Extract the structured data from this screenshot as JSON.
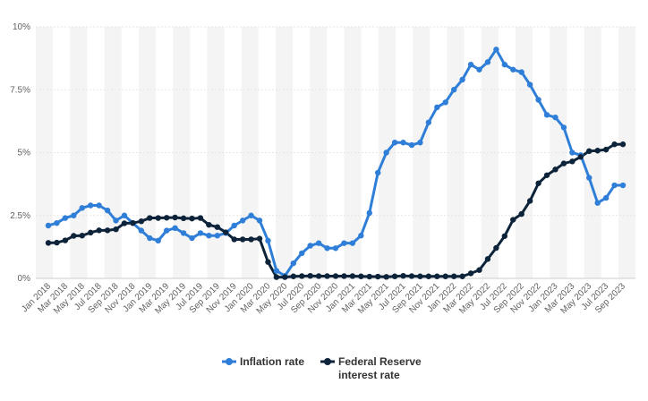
{
  "chart_data": {
    "type": "line",
    "x_tick_labels": [
      "Jan 2018",
      "Mar 2018",
      "May 2018",
      "Jul 2018",
      "Sep 2018",
      "Nov 2018",
      "Jan 2019",
      "Mar 2019",
      "May 2019",
      "Jul 2019",
      "Sep 2019",
      "Nov 2019",
      "Jan 2020",
      "Mar 2020",
      "May 2020",
      "Jul 2020",
      "Sep 2020",
      "Nov 2020",
      "Jan 2021",
      "Mar 2021",
      "May 2021",
      "Jul 2021",
      "Sep 2021",
      "Nov 2021",
      "Jan 2022",
      "Mar 2022",
      "May 2022",
      "Jul 2022",
      "Sep 2022",
      "Nov 2022",
      "Jan 2023",
      "Mar 2023",
      "May 2023",
      "Jul 2023",
      "Sep 2023"
    ],
    "y_ticks": [
      {
        "value": 0,
        "label": "0%"
      },
      {
        "value": 2.5,
        "label": "2.5%"
      },
      {
        "value": 5,
        "label": "5%"
      },
      {
        "value": 7.5,
        "label": "7.5%"
      },
      {
        "value": 10,
        "label": "10%"
      }
    ],
    "ylim": [
      0,
      10
    ],
    "x_start": "Jan 2018",
    "x_end": "Sep 2023",
    "grid": "alternating vertical bands",
    "legend_position": "bottom-center",
    "series": [
      {
        "name": "Inflation rate",
        "color": "#2f7ed8",
        "values": [
          2.1,
          2.2,
          2.4,
          2.5,
          2.8,
          2.9,
          2.9,
          2.7,
          2.3,
          2.5,
          2.2,
          1.9,
          1.6,
          1.5,
          1.9,
          2.0,
          1.8,
          1.6,
          1.8,
          1.7,
          1.7,
          1.8,
          2.1,
          2.3,
          2.5,
          2.3,
          1.5,
          0.3,
          0.1,
          0.6,
          1.0,
          1.3,
          1.4,
          1.2,
          1.2,
          1.4,
          1.4,
          1.7,
          2.6,
          4.2,
          5.0,
          5.4,
          5.4,
          5.3,
          5.4,
          6.2,
          6.8,
          7.0,
          7.5,
          7.9,
          8.5,
          8.3,
          8.6,
          9.1,
          8.5,
          8.3,
          8.2,
          7.7,
          7.1,
          6.5,
          6.4,
          6.0,
          5.0,
          4.9,
          4.0,
          3.0,
          3.2,
          3.7,
          3.7
        ]
      },
      {
        "name": "Federal Reserve interest rate",
        "color": "#0d233a",
        "values": [
          1.41,
          1.42,
          1.51,
          1.69,
          1.7,
          1.82,
          1.91,
          1.91,
          1.95,
          2.19,
          2.2,
          2.27,
          2.4,
          2.4,
          2.41,
          2.42,
          2.39,
          2.38,
          2.4,
          2.13,
          2.04,
          1.83,
          1.55,
          1.55,
          1.55,
          1.58,
          0.65,
          0.05,
          0.05,
          0.08,
          0.09,
          0.1,
          0.09,
          0.09,
          0.09,
          0.09,
          0.09,
          0.08,
          0.07,
          0.07,
          0.06,
          0.08,
          0.1,
          0.09,
          0.08,
          0.08,
          0.08,
          0.08,
          0.08,
          0.08,
          0.2,
          0.33,
          0.77,
          1.21,
          1.68,
          2.33,
          2.56,
          3.08,
          3.78,
          4.1,
          4.33,
          4.57,
          4.65,
          4.83,
          5.06,
          5.08,
          5.12,
          5.33,
          5.33
        ]
      }
    ]
  }
}
